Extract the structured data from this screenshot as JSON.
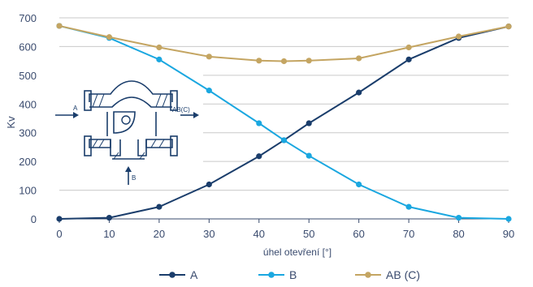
{
  "chart_data": {
    "type": "line",
    "x": [
      0,
      10,
      20,
      30,
      40,
      45,
      50,
      60,
      70,
      80,
      90
    ],
    "xticks": [
      0,
      10,
      20,
      30,
      40,
      50,
      60,
      70,
      80,
      90
    ],
    "yticks": [
      0,
      100,
      200,
      300,
      400,
      500,
      600,
      700
    ],
    "xlim": [
      0,
      90
    ],
    "ylim": [
      0,
      700
    ],
    "xlabel": "úhel otevření [°]",
    "ylabel": "Kv",
    "title": "",
    "grid": "horizontal",
    "legend_position": "bottom",
    "series": [
      {
        "name": "A",
        "color": "#1a3d6b",
        "values": [
          0,
          4,
          42,
          120,
          218,
          274,
          333,
          440,
          555,
          630,
          670
        ]
      },
      {
        "name": "B",
        "color": "#1aa7e0",
        "values": [
          672,
          630,
          555,
          447,
          333,
          274,
          220,
          120,
          42,
          4,
          0
        ]
      },
      {
        "name": "AB (C)",
        "color": "#c4a562",
        "values": [
          672,
          633,
          597,
          565,
          551,
          549,
          551,
          559,
          597,
          635,
          670
        ]
      }
    ],
    "inset_labels": {
      "a": "A",
      "b": "B",
      "ab": "AB(C)"
    },
    "colors": {
      "axis": "#3a4b6e",
      "grid": "#c9c9c9",
      "text": "#3a4b6e",
      "inset": "#1a3d6b"
    }
  }
}
